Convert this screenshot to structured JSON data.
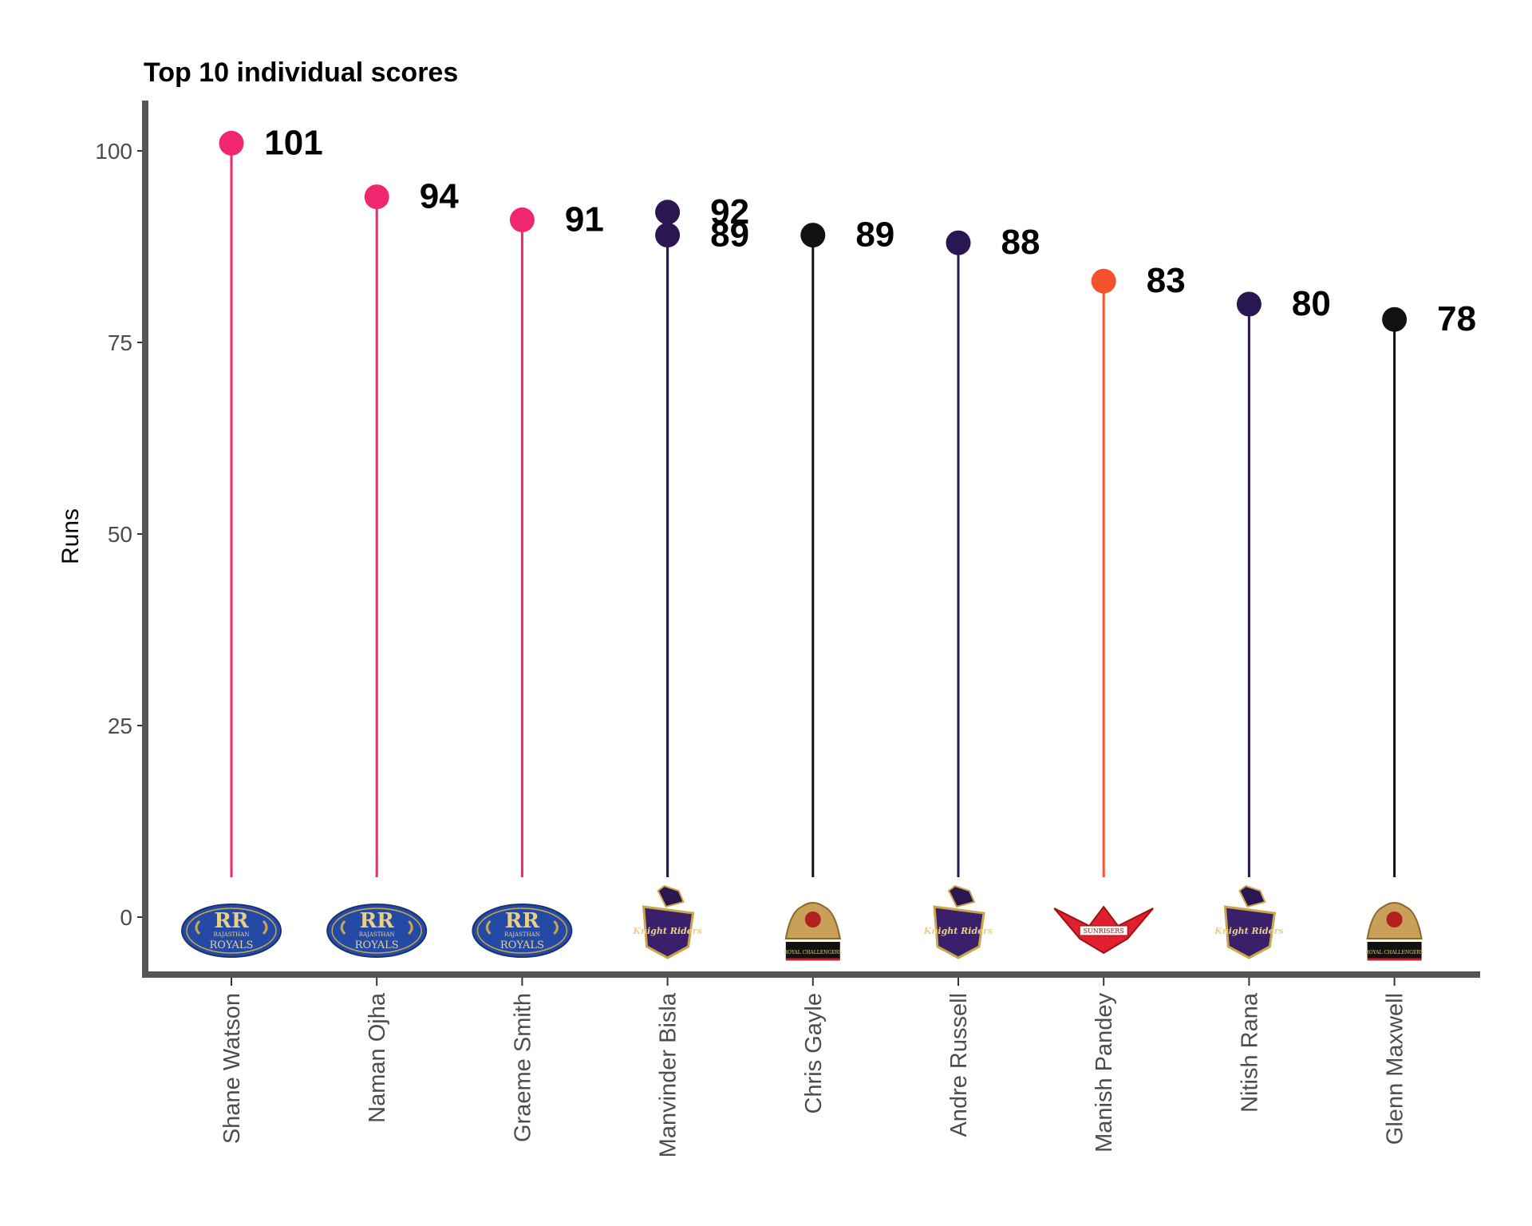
{
  "chart_data": {
    "type": "lollipop",
    "title": "Top 10 individual scores",
    "xlabel": "",
    "ylabel": "Runs",
    "ylim": [
      -6.5,
      106
    ],
    "yticks": [
      0,
      25,
      50,
      75,
      100
    ],
    "grid": false,
    "legend": "none",
    "categories": [
      "Shane Watson",
      "Naman Ojha",
      "Graeme Smith",
      "Manvinder  Bisla",
      "Chris Gayle",
      "Andre Russell",
      "Manish Pandey",
      "Nitish Rana",
      "Glenn Maxwell"
    ],
    "points": [
      {
        "category": "Shane Watson",
        "value": 101,
        "label": "101",
        "team": "Rajasthan Royals",
        "color": "#f0266f"
      },
      {
        "category": "Naman Ojha",
        "value": 94,
        "label": "94",
        "team": "Rajasthan Royals",
        "color": "#f0266f"
      },
      {
        "category": "Graeme Smith",
        "value": 91,
        "label": "91",
        "team": "Rajasthan Royals",
        "color": "#f0266f"
      },
      {
        "category": "Manvinder  Bisla",
        "value": 92,
        "label": "92",
        "team": "Kolkata Knight Riders",
        "color": "#2a1650"
      },
      {
        "category": "Manvinder  Bisla",
        "value": 89,
        "label": "89",
        "team": "Kolkata Knight Riders",
        "color": "#2a1650"
      },
      {
        "category": "Chris Gayle",
        "value": 89,
        "label": "89",
        "team": "Royal Challengers",
        "color": "#111111"
      },
      {
        "category": "Andre Russell",
        "value": 88,
        "label": "88",
        "team": "Kolkata Knight Riders",
        "color": "#2a1650"
      },
      {
        "category": "Manish Pandey",
        "value": 83,
        "label": "83",
        "team": "Sunrisers",
        "color": "#f4512c"
      },
      {
        "category": "Nitish Rana",
        "value": 80,
        "label": "80",
        "team": "Kolkata Knight Riders",
        "color": "#2a1650"
      },
      {
        "category": "Glenn Maxwell",
        "value": 78,
        "label": "78",
        "team": "Royal Challengers",
        "color": "#111111"
      }
    ],
    "logos": [
      {
        "category": "Shane Watson",
        "icon": "rajasthan-royals-logo",
        "team": "Rajasthan Royals",
        "text": "ROYALS",
        "subtext": "RAJASTHAN"
      },
      {
        "category": "Naman Ojha",
        "icon": "rajasthan-royals-logo",
        "team": "Rajasthan Royals",
        "text": "ROYALS",
        "subtext": "RAJASTHAN"
      },
      {
        "category": "Graeme Smith",
        "icon": "rajasthan-royals-logo",
        "team": "Rajasthan Royals",
        "text": "ROYALS",
        "subtext": "RAJASTHAN"
      },
      {
        "category": "Manvinder  Bisla",
        "icon": "knight-riders-logo",
        "team": "Kolkata Knight Riders",
        "text": "Knight Riders"
      },
      {
        "category": "Chris Gayle",
        "icon": "royal-challengers-logo",
        "team": "Royal Challengers",
        "text": "ROYAL CHALLENGERS"
      },
      {
        "category": "Andre Russell",
        "icon": "knight-riders-logo",
        "team": "Kolkata Knight Riders",
        "text": "Knight Riders"
      },
      {
        "category": "Manish Pandey",
        "icon": "sunrisers-logo",
        "team": "Sunrisers",
        "text": "SUNRISERS"
      },
      {
        "category": "Nitish Rana",
        "icon": "knight-riders-logo",
        "team": "Kolkata Knight Riders",
        "text": "Knight Riders"
      },
      {
        "category": "Glenn Maxwell",
        "icon": "royal-challengers-logo",
        "team": "Royal Challengers",
        "text": "ROYAL CHALLENGERS"
      }
    ]
  }
}
